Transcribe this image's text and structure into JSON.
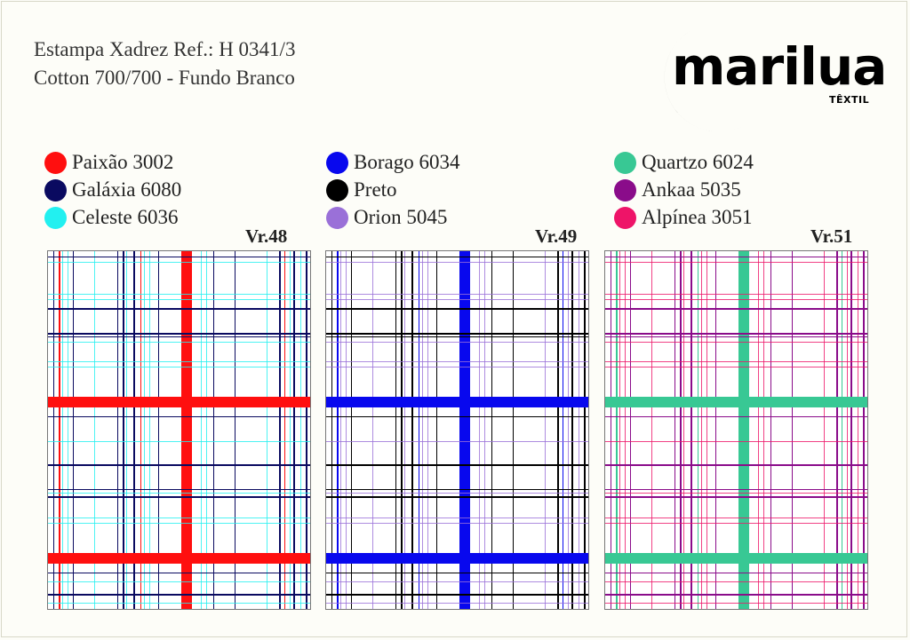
{
  "header": {
    "title_line1": "Estampa Xadrez Ref.: H 0341/3",
    "title_line2": "Cotton 700/700 - Fundo Branco"
  },
  "brand": {
    "name": "marilua",
    "subtitle": "TÊXTIL"
  },
  "colors": [
    {
      "name": "Paixão 3002",
      "hex": "#ff0f0f"
    },
    {
      "name": "Galáxia 6080",
      "hex": "#0a0a60"
    },
    {
      "name": "Celeste 6036",
      "hex": "#22f0f0"
    },
    {
      "name": "Borago 6034",
      "hex": "#0808ee"
    },
    {
      "name": "Preto",
      "hex": "#000000"
    },
    {
      "name": "Orion 5045",
      "hex": "#9a70d8"
    },
    {
      "name": "Quartzo 6024",
      "hex": "#38c894"
    },
    {
      "name": "Ankaa 5035",
      "hex": "#8a0c8a"
    },
    {
      "name": "Alpínea 3051",
      "hex": "#ee1468"
    }
  ],
  "variants": [
    {
      "label": "Vr.48",
      "main": "#ff0f0f",
      "dark": "#0a0a60",
      "light": "#22f0f0"
    },
    {
      "label": "Vr.49",
      "main": "#0808ee",
      "dark": "#000000",
      "light": "#9a70d8"
    },
    {
      "label": "Vr.51",
      "main": "#38c894",
      "dark": "#8a0c8a",
      "light": "#ee1468"
    }
  ]
}
